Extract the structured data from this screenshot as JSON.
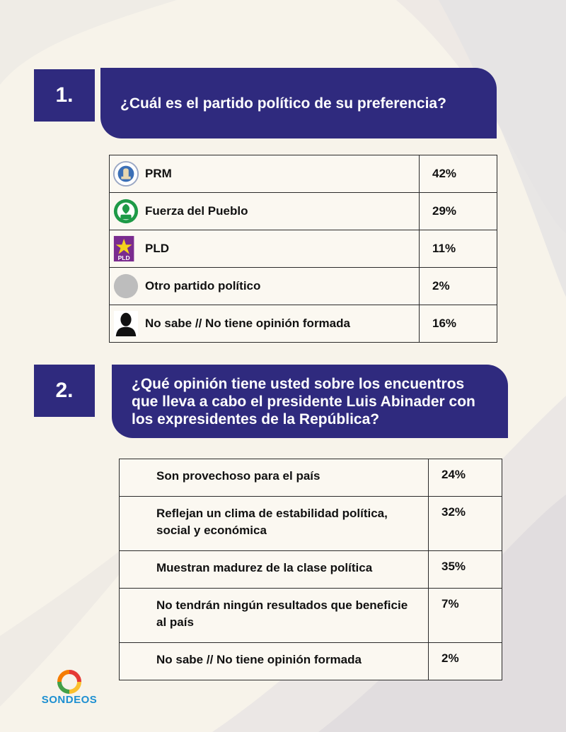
{
  "q1": {
    "number": "1.",
    "question": "¿Cuál es el partido político de su preferencia?",
    "rows": [
      {
        "label": "PRM",
        "value": "42%",
        "icon": "prm-logo-icon"
      },
      {
        "label": "Fuerza del Pueblo",
        "value": "29%",
        "icon": "fuerza-del-pueblo-logo-icon"
      },
      {
        "label": "PLD",
        "value": "11%",
        "icon": "pld-logo-icon",
        "icon_text": "PLD"
      },
      {
        "label": "Otro partido político",
        "value": "2%",
        "icon": "gray-circle-icon"
      },
      {
        "label": "No sabe // No tiene opinión formada",
        "value": "16%",
        "icon": "person-silhouette-icon"
      }
    ]
  },
  "q2": {
    "number": "2.",
    "question": "¿Qué opinión tiene usted sobre los encuentros que lleva a cabo el presidente Luis Abinader con los expresidentes de la República?",
    "rows": [
      {
        "label": "Son provechoso para el país",
        "value": "24%"
      },
      {
        "label": "Reflejan un clima de estabilidad política, social y económica",
        "value": "32%"
      },
      {
        "label": "Muestran madurez de la clase política",
        "value": "35%"
      },
      {
        "label": "No tendrán ningún resultados que beneficie al país",
        "value": "7%"
      },
      {
        "label": "No sabe // No tiene opinión formada",
        "value": "2%"
      }
    ]
  },
  "logo": {
    "text": "SONDEOS",
    "icon": "sondeos-ring-icon"
  },
  "colors": {
    "banner": "#2f2a7e",
    "background": "#f7f3ea",
    "logo_blue": "#1d8fd1"
  }
}
